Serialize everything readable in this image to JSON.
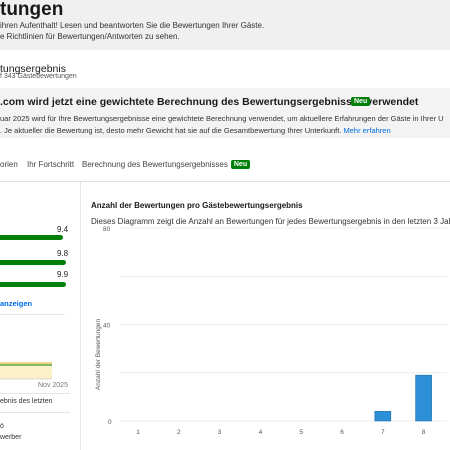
{
  "page": {
    "title": "tungen",
    "intro_line1": "ihren Aufenthalt! Lesen und beantworten Sie die Bewertungen Ihrer Gäste.",
    "intro_line2": "e Richtlinien für Bewertungen/Antworten zu sehen."
  },
  "summary": {
    "title": "tungsergebnis",
    "subtitle": "f 343 Gästebewertungen"
  },
  "announcement": {
    "title": ".com wird jetzt eine gewichtete Berechnung des Bewertungsergebnisses verwendet",
    "badge": "Neu",
    "line1": "uar 2025 wird für Ihre Bewertungsergebnisse eine gewichtete Berechnung verwendet, um aktuellere Erfahrungen der Gäste in Ihrer U",
    "line2": ". Je aktueller die Bewertung ist, desto mehr Gewicht hat sie auf die Gesamtbewertung Ihrer Unterkunft.",
    "more_link": "Mehr erfahren"
  },
  "tabs": [
    {
      "label": "orien"
    },
    {
      "label": "Ihr Fortschritt"
    },
    {
      "label": "Berechnung des Bewertungsergebnisses",
      "badge": "Neu"
    }
  ],
  "left": {
    "scores": [
      {
        "value": "9.4",
        "fraction": 0.94
      },
      {
        "value": "9.8",
        "fraction": 0.98
      },
      {
        "value": "9.9",
        "fraction": 0.99
      }
    ],
    "show_link": "anzeigen",
    "month_label": "Nov 2025",
    "text1": "ebnis des letzten",
    "text2": "ö",
    "text3": "werber"
  },
  "chart": {
    "heading": "Anzahl der Bewertungen pro Gästebewertungsergebnis",
    "description": "Dieses Diagramm zeigt die Anzahl an Bewertungen für jedes Bewertungsergebnis in den letzten 3 Jahren.",
    "bar_color": "#2d8fd5"
  },
  "chart_data": {
    "type": "bar",
    "title": "Anzahl der Bewertungen pro Gästebewertungsergebnis",
    "xlabel": "",
    "ylabel": "Anzahl der Bewertungen",
    "categories": [
      "1",
      "2",
      "3",
      "4",
      "5",
      "6",
      "7",
      "8"
    ],
    "values": [
      0,
      0,
      0,
      0,
      0,
      0,
      4,
      19
    ],
    "ylim": [
      0,
      80
    ],
    "yticks": [
      0,
      20,
      40,
      60,
      80
    ],
    "ytick_labels": [
      "0",
      "",
      "40",
      "",
      "80"
    ],
    "grid": true
  }
}
